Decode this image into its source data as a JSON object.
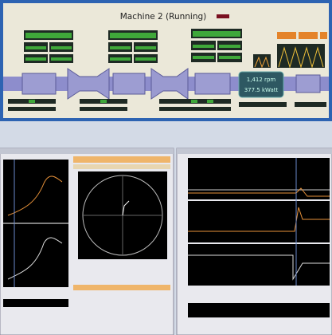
{
  "header": {
    "title": "Machine 2 (Running)"
  },
  "display": {
    "speed": "1,412 rpm",
    "power": "377.5 kWatt"
  }
}
